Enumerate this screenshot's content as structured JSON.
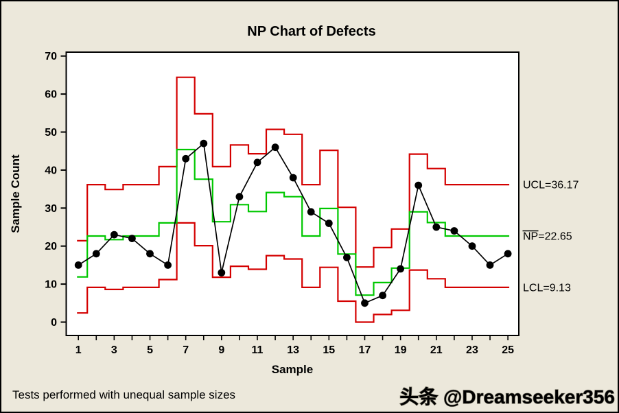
{
  "window": {
    "kind": "static-chart-image"
  },
  "title": "NP Chart of Defects",
  "footnote": "Tests performed with unequal sample sizes",
  "watermark": "头条 @Dreamseeker356",
  "colors": {
    "background": "#ece8db",
    "plot_background": "#ffffff",
    "frame": "#000000",
    "limit_line": "#d40000",
    "center_line": "#00c800",
    "data_line": "#000000",
    "marker": "#000000",
    "watermark_fill": "#f3f0e3",
    "watermark_outline": "#817d6d"
  },
  "chart_data": {
    "type": "line",
    "subtype": "np_control_chart",
    "title": "NP Chart of Defects",
    "xlabel": "Sample",
    "ylabel": "Sample Count",
    "x": [
      1,
      2,
      3,
      4,
      5,
      6,
      7,
      8,
      9,
      10,
      11,
      12,
      13,
      14,
      15,
      16,
      17,
      18,
      19,
      20,
      21,
      22,
      23,
      24,
      25
    ],
    "series": [
      {
        "name": "sample_count",
        "draw": "line+markers",
        "color": "#000000",
        "values": [
          15,
          18,
          23,
          22,
          18,
          15,
          43,
          47,
          13,
          33,
          42,
          46,
          38,
          29,
          26,
          17,
          5,
          7,
          14,
          36,
          25,
          24,
          20,
          15,
          18
        ]
      },
      {
        "name": "ucl_limit",
        "draw": "step",
        "color": "#d40000",
        "values": [
          21.4,
          36.17,
          34.9,
          36.17,
          36.17,
          40.9,
          64.4,
          54.8,
          40.9,
          46.6,
          44.3,
          50.7,
          49.4,
          36.17,
          45.2,
          30.2,
          14.5,
          19.6,
          24.5,
          44.2,
          40.4,
          36.17,
          36.17,
          36.17,
          36.17
        ]
      },
      {
        "name": "center_line",
        "draw": "step",
        "color": "#00c800",
        "values": [
          11.9,
          22.65,
          21.7,
          22.65,
          22.65,
          26.1,
          45.4,
          37.6,
          26.4,
          30.9,
          29.1,
          34.1,
          33.0,
          22.65,
          29.9,
          17.9,
          7.1,
          10.4,
          14.2,
          29.0,
          26.2,
          22.65,
          22.65,
          22.65,
          22.65
        ]
      },
      {
        "name": "lcl_limit",
        "draw": "step",
        "color": "#d40000",
        "values": [
          2.4,
          9.13,
          8.6,
          9.13,
          9.13,
          11.2,
          26.1,
          20.1,
          11.8,
          14.7,
          13.9,
          17.5,
          16.6,
          9.13,
          14.4,
          5.5,
          0,
          2.0,
          3.1,
          13.7,
          11.4,
          9.13,
          9.13,
          9.13,
          9.13
        ]
      }
    ],
    "yticks": [
      0,
      10,
      20,
      30,
      40,
      50,
      60,
      70
    ],
    "xticks": [
      1,
      2,
      3,
      4,
      5,
      6,
      7,
      8,
      9,
      10,
      11,
      12,
      13,
      14,
      15,
      16,
      17,
      18,
      19,
      20,
      21,
      22,
      23,
      24,
      25
    ],
    "xtick_labels": [
      1,
      3,
      5,
      7,
      9,
      11,
      13,
      15,
      17,
      19,
      21,
      23,
      25
    ],
    "ylim": [
      -3.5,
      71
    ],
    "xlim": [
      0.3,
      25.7
    ],
    "grid": false,
    "legend_position": "none",
    "annotations": [
      {
        "id": "ucl",
        "text": "UCL=36.17",
        "value": 36.17
      },
      {
        "id": "center",
        "text": "NP=22.65",
        "value": 22.65,
        "overline_chars": "NP"
      },
      {
        "id": "lcl",
        "text": "LCL=9.13",
        "value": 9.13
      }
    ]
  }
}
